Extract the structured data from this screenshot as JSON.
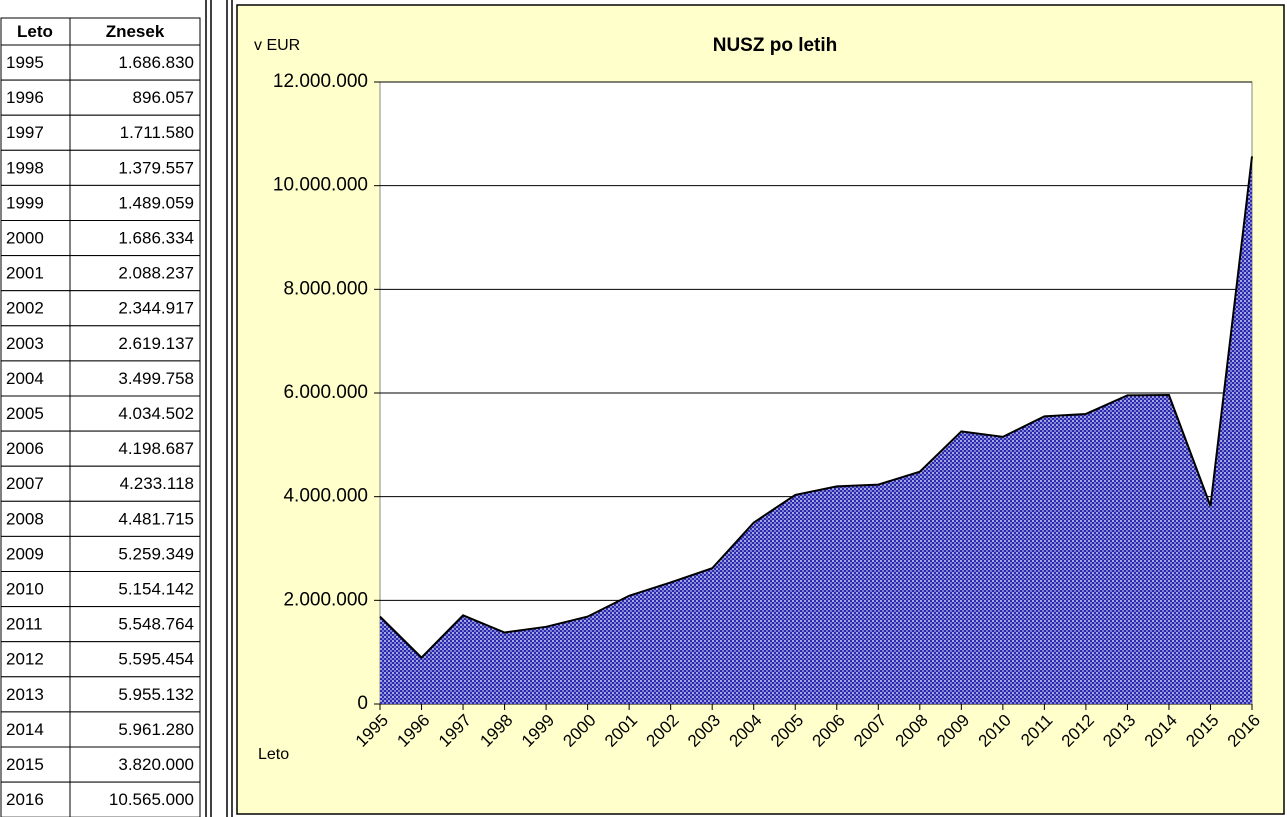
{
  "table": {
    "header": [
      "Leto",
      "Znesek"
    ],
    "rows": [
      [
        "1995",
        "1.686.830"
      ],
      [
        "1996",
        "896.057"
      ],
      [
        "1997",
        "1.711.580"
      ],
      [
        "1998",
        "1.379.557"
      ],
      [
        "1999",
        "1.489.059"
      ],
      [
        "2000",
        "1.686.334"
      ],
      [
        "2001",
        "2.088.237"
      ],
      [
        "2002",
        "2.344.917"
      ],
      [
        "2003",
        "2.619.137"
      ],
      [
        "2004",
        "3.499.758"
      ],
      [
        "2005",
        "4.034.502"
      ],
      [
        "2006",
        "4.198.687"
      ],
      [
        "2007",
        "4.233.118"
      ],
      [
        "2008",
        "4.481.715"
      ],
      [
        "2009",
        "5.259.349"
      ],
      [
        "2010",
        "5.154.142"
      ],
      [
        "2011",
        "5.548.764"
      ],
      [
        "2012",
        "5.595.454"
      ],
      [
        "2013",
        "5.955.132"
      ],
      [
        "2014",
        "5.961.280"
      ],
      [
        "2015",
        "3.820.000"
      ],
      [
        "2016",
        "10.565.000"
      ]
    ]
  },
  "chart_data": {
    "type": "area",
    "title": "NUSZ po letih",
    "y_label": "v EUR",
    "x_label": "Leto",
    "categories": [
      "1995",
      "1996",
      "1997",
      "1998",
      "1999",
      "2000",
      "2001",
      "2002",
      "2003",
      "2004",
      "2005",
      "2006",
      "2007",
      "2008",
      "2009",
      "2010",
      "2011",
      "2012",
      "2013",
      "2014",
      "2015",
      "2016"
    ],
    "values": [
      1686830,
      896057,
      1711580,
      1379557,
      1489059,
      1686334,
      2088237,
      2344917,
      2619137,
      3499758,
      4034502,
      4198687,
      4233118,
      4481715,
      5259349,
      5154142,
      5548764,
      5595454,
      5955132,
      5961280,
      3820000,
      10565000
    ],
    "color": "#2a2ab0",
    "line_color": "#000000",
    "background": "#ffffcc",
    "ylim": [
      0,
      12000000
    ],
    "yticks": [
      0,
      {
        "value": 2000000,
        "label": "2.000.000"
      },
      {
        "value": 4000000,
        "label": "4.000.000"
      },
      {
        "value": 6000000,
        "label": "6.000.000"
      },
      {
        "value": 8000000,
        "label": "8.000.000"
      },
      {
        "value": 10000000,
        "label": "10.000.000"
      },
      {
        "value": 12000000,
        "label": "12.000.000"
      }
    ],
    "grid": true
  }
}
